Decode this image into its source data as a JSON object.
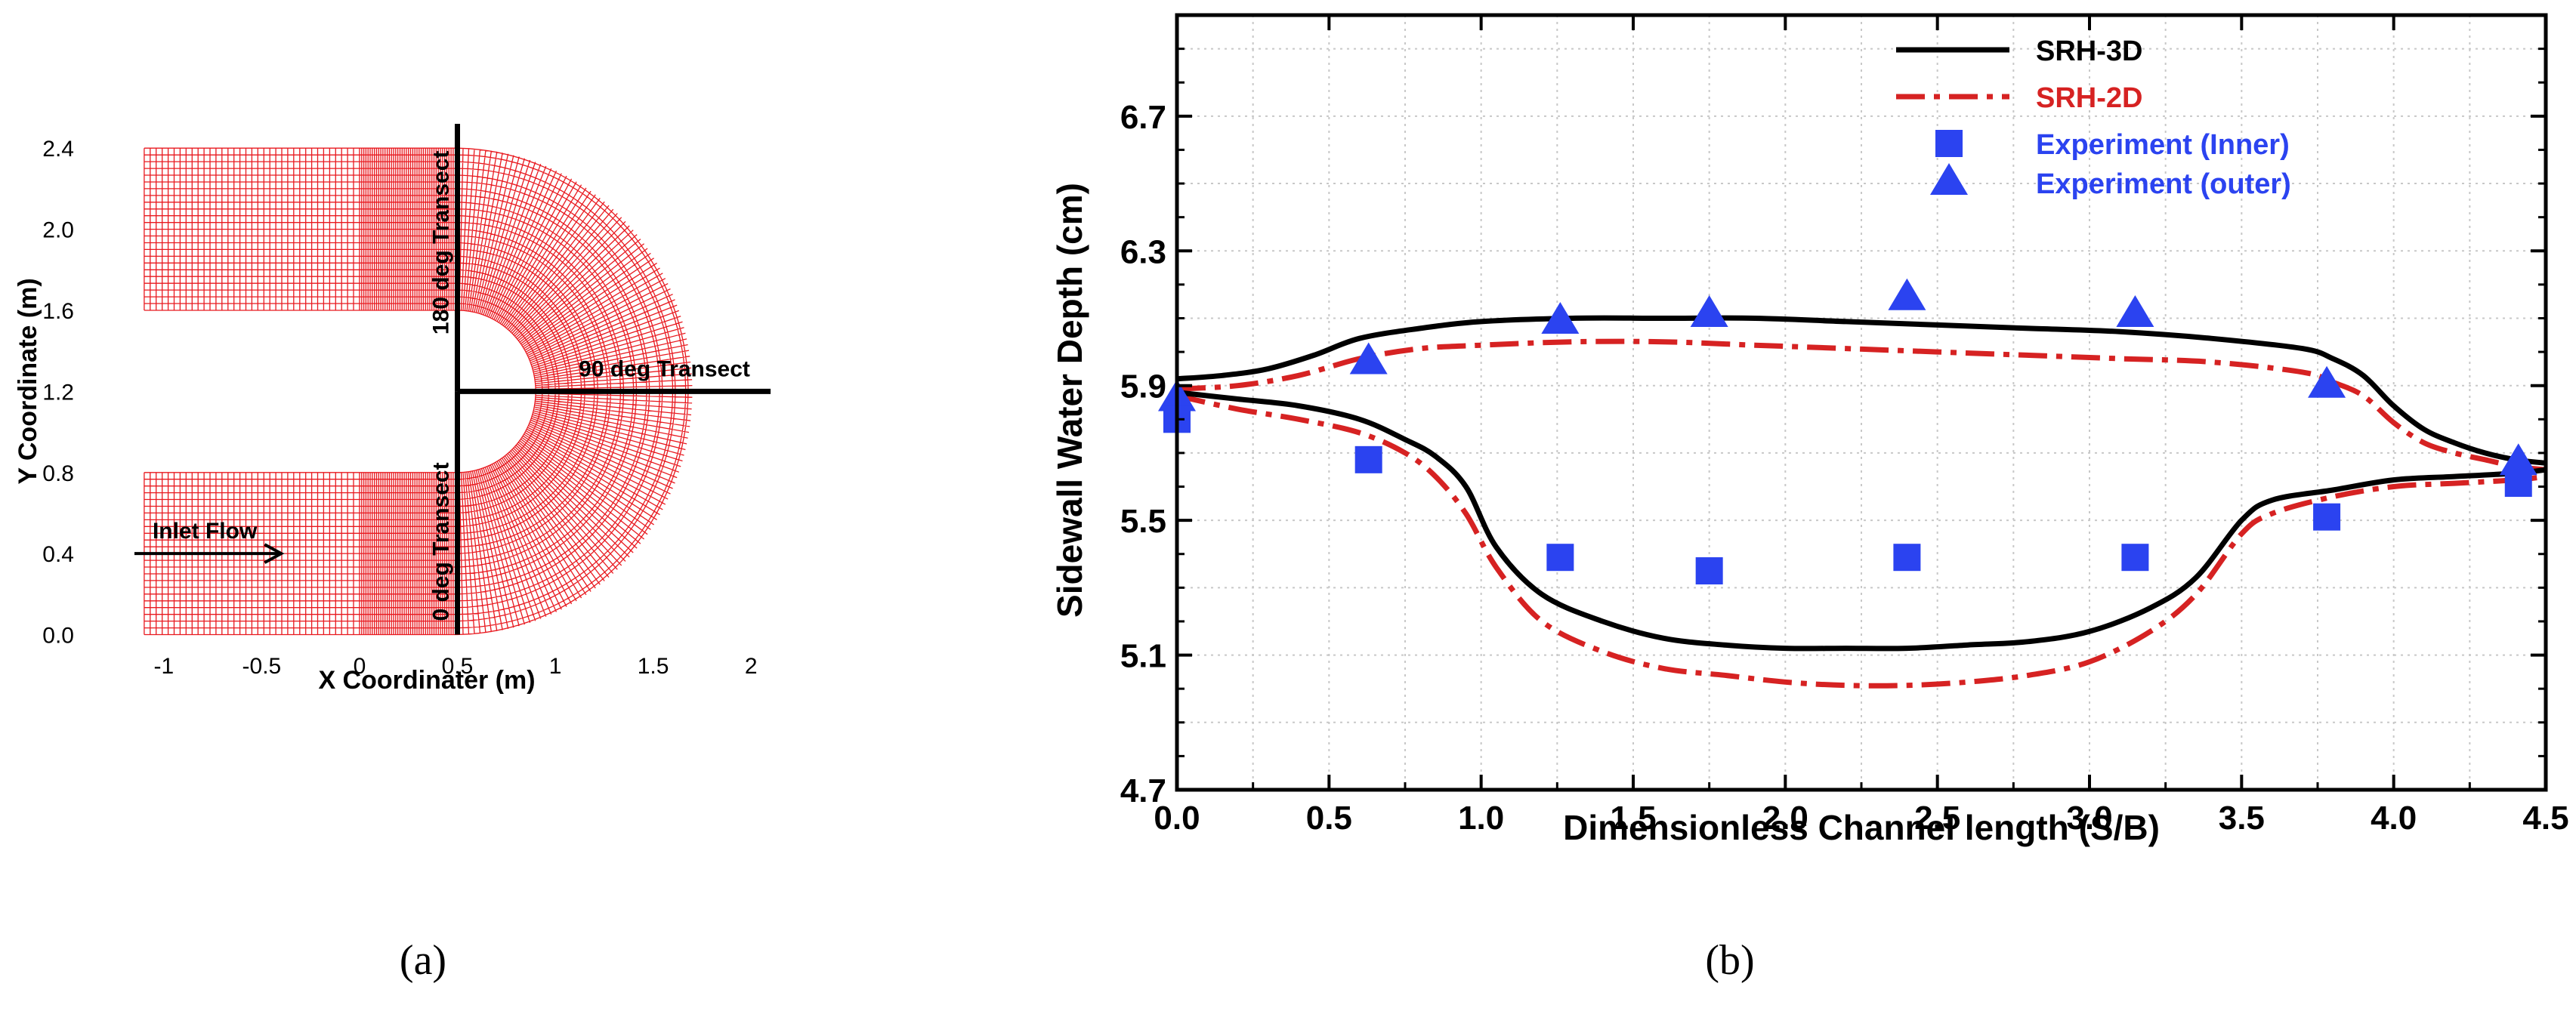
{
  "panel_a": {
    "caption": "(a)",
    "grid_color": "#e8191f",
    "chart_data": {
      "type": "diagram",
      "xlabel": "X Coordinater (m)",
      "ylabel": "Y Coordinate (m)",
      "xlim": [
        -1.2,
        2.2
      ],
      "ylim": [
        -0.08,
        2.52
      ],
      "x_ticks": [
        -1,
        -0.5,
        0,
        0.5,
        1,
        1.5,
        2
      ],
      "x_tick_labels": [
        "-1",
        "-0.5",
        "0",
        "0.5",
        "1",
        "1.5",
        "2"
      ],
      "y_ticks": [
        0.0,
        0.4,
        0.8,
        1.2,
        1.6,
        2.0,
        2.4
      ],
      "y_tick_labels": [
        "0.0",
        "0.4",
        "0.8",
        "1.2",
        "1.6",
        "2.0",
        "2.4"
      ],
      "geometry": {
        "straight_x": [
          -1.1,
          0.5
        ],
        "dense_start_x": 0.0,
        "inlet_y": [
          0.0,
          0.8
        ],
        "outlet_y": [
          1.6,
          2.4
        ],
        "bend_center": [
          0.5,
          1.2
        ],
        "inner_radius": 0.4,
        "outer_radius": 1.2
      },
      "annotations": {
        "t0": {
          "label": "0 deg Transect",
          "x": 0.5,
          "y0": 0.0,
          "y1": 1.2
        },
        "t180": {
          "label": "180 deg Transect",
          "x": 0.5,
          "y0": 1.2,
          "y1": 2.52
        },
        "t90": {
          "label": "90 deg Transect",
          "y": 1.2,
          "x0": 0.5,
          "x1": 2.1
        },
        "inlet": {
          "label": "Inlet Flow",
          "y": 0.4,
          "x0": -1.15,
          "x1": -0.4
        }
      }
    }
  },
  "panel_b": {
    "caption": "(b)",
    "chart_data": {
      "type": "line",
      "xlabel": "Dimensionless Channel length (S/B)",
      "ylabel": "Sidewall Water Depth (cm)",
      "xlim": [
        0.0,
        4.5
      ],
      "ylim": [
        4.7,
        7.0
      ],
      "x_ticks": [
        0.0,
        0.5,
        1.0,
        1.5,
        2.0,
        2.5,
        3.0,
        3.5,
        4.0,
        4.5
      ],
      "x_tick_labels": [
        "0.0",
        "0.5",
        "1.0",
        "1.5",
        "2.0",
        "2.5",
        "3.0",
        "3.5",
        "4.0",
        "4.5"
      ],
      "y_ticks": [
        4.7,
        5.1,
        5.5,
        5.9,
        6.3,
        6.7
      ],
      "y_tick_labels": [
        "4.7",
        "5.1",
        "5.5",
        "5.9",
        "6.3",
        "6.7"
      ],
      "grid": true,
      "legend_position": "top-right",
      "series": [
        {
          "name": "SRH-3D",
          "kind": "line",
          "color": "#000000",
          "dash": "solid",
          "legend_color": "#000000",
          "curves": [
            {
              "x": [
                0.0,
                0.15,
                0.3,
                0.45,
                0.6,
                0.8,
                1.0,
                1.3,
                1.6,
                1.9,
                2.2,
                2.5,
                2.8,
                3.1,
                3.4,
                3.7,
                3.8,
                3.9,
                4.0,
                4.1,
                4.2,
                4.3,
                4.4,
                4.5
              ],
              "y": [
                5.92,
                5.93,
                5.95,
                5.99,
                6.04,
                6.07,
                6.09,
                6.1,
                6.1,
                6.1,
                6.09,
                6.08,
                6.07,
                6.06,
                6.04,
                6.01,
                5.98,
                5.93,
                5.84,
                5.77,
                5.73,
                5.7,
                5.68,
                5.67
              ]
            },
            {
              "x": [
                0.0,
                0.2,
                0.4,
                0.6,
                0.75,
                0.85,
                0.95,
                1.05,
                1.2,
                1.4,
                1.6,
                1.8,
                2.0,
                2.2,
                2.4,
                2.6,
                2.8,
                3.0,
                3.2,
                3.35,
                3.5,
                3.6,
                3.8,
                4.0,
                4.2,
                4.4,
                4.5
              ],
              "y": [
                5.88,
                5.86,
                5.84,
                5.8,
                5.74,
                5.69,
                5.6,
                5.42,
                5.28,
                5.2,
                5.15,
                5.13,
                5.12,
                5.12,
                5.12,
                5.13,
                5.14,
                5.17,
                5.24,
                5.33,
                5.5,
                5.56,
                5.59,
                5.62,
                5.63,
                5.64,
                5.65
              ]
            }
          ]
        },
        {
          "name": "SRH-2D",
          "kind": "line",
          "color": "#d62222",
          "dash": "dashdot",
          "legend_color": "#d62222",
          "curves": [
            {
              "x": [
                0.0,
                0.2,
                0.4,
                0.6,
                0.8,
                1.0,
                1.3,
                1.6,
                1.9,
                2.2,
                2.5,
                2.8,
                3.1,
                3.4,
                3.7,
                3.8,
                3.9,
                4.0,
                4.1,
                4.2,
                4.3,
                4.4,
                4.5
              ],
              "y": [
                5.89,
                5.9,
                5.93,
                5.98,
                6.01,
                6.02,
                6.03,
                6.03,
                6.02,
                6.01,
                6.0,
                5.99,
                5.98,
                5.97,
                5.94,
                5.91,
                5.87,
                5.79,
                5.73,
                5.7,
                5.68,
                5.66,
                5.65
              ]
            },
            {
              "x": [
                0.0,
                0.2,
                0.4,
                0.6,
                0.75,
                0.85,
                0.95,
                1.05,
                1.2,
                1.4,
                1.6,
                1.8,
                2.0,
                2.2,
                2.4,
                2.6,
                2.8,
                3.0,
                3.2,
                3.35,
                3.5,
                3.6,
                3.8,
                4.0,
                4.2,
                4.4,
                4.5
              ],
              "y": [
                5.87,
                5.83,
                5.8,
                5.76,
                5.7,
                5.63,
                5.52,
                5.36,
                5.2,
                5.11,
                5.06,
                5.04,
                5.02,
                5.01,
                5.01,
                5.02,
                5.04,
                5.08,
                5.17,
                5.28,
                5.46,
                5.52,
                5.57,
                5.6,
                5.61,
                5.62,
                5.63
              ]
            }
          ]
        },
        {
          "name": "Experiment (Inner)",
          "kind": "marker",
          "marker": "square",
          "color": "#2b43f0",
          "legend_color": "#2b43f0",
          "x": [
            0.0,
            0.63,
            1.26,
            1.75,
            2.4,
            3.15,
            3.78,
            4.41
          ],
          "y": [
            5.8,
            5.68,
            5.39,
            5.35,
            5.39,
            5.39,
            5.51,
            5.61
          ]
        },
        {
          "name": "Experiment (outer)",
          "kind": "marker",
          "marker": "triangle",
          "color": "#2b43f0",
          "legend_color": "#2b43f0",
          "x": [
            0.0,
            0.63,
            1.26,
            1.75,
            2.4,
            3.15,
            3.78,
            4.41
          ],
          "y": [
            5.86,
            5.97,
            6.09,
            6.11,
            6.16,
            6.11,
            5.9,
            5.67
          ]
        }
      ]
    }
  }
}
